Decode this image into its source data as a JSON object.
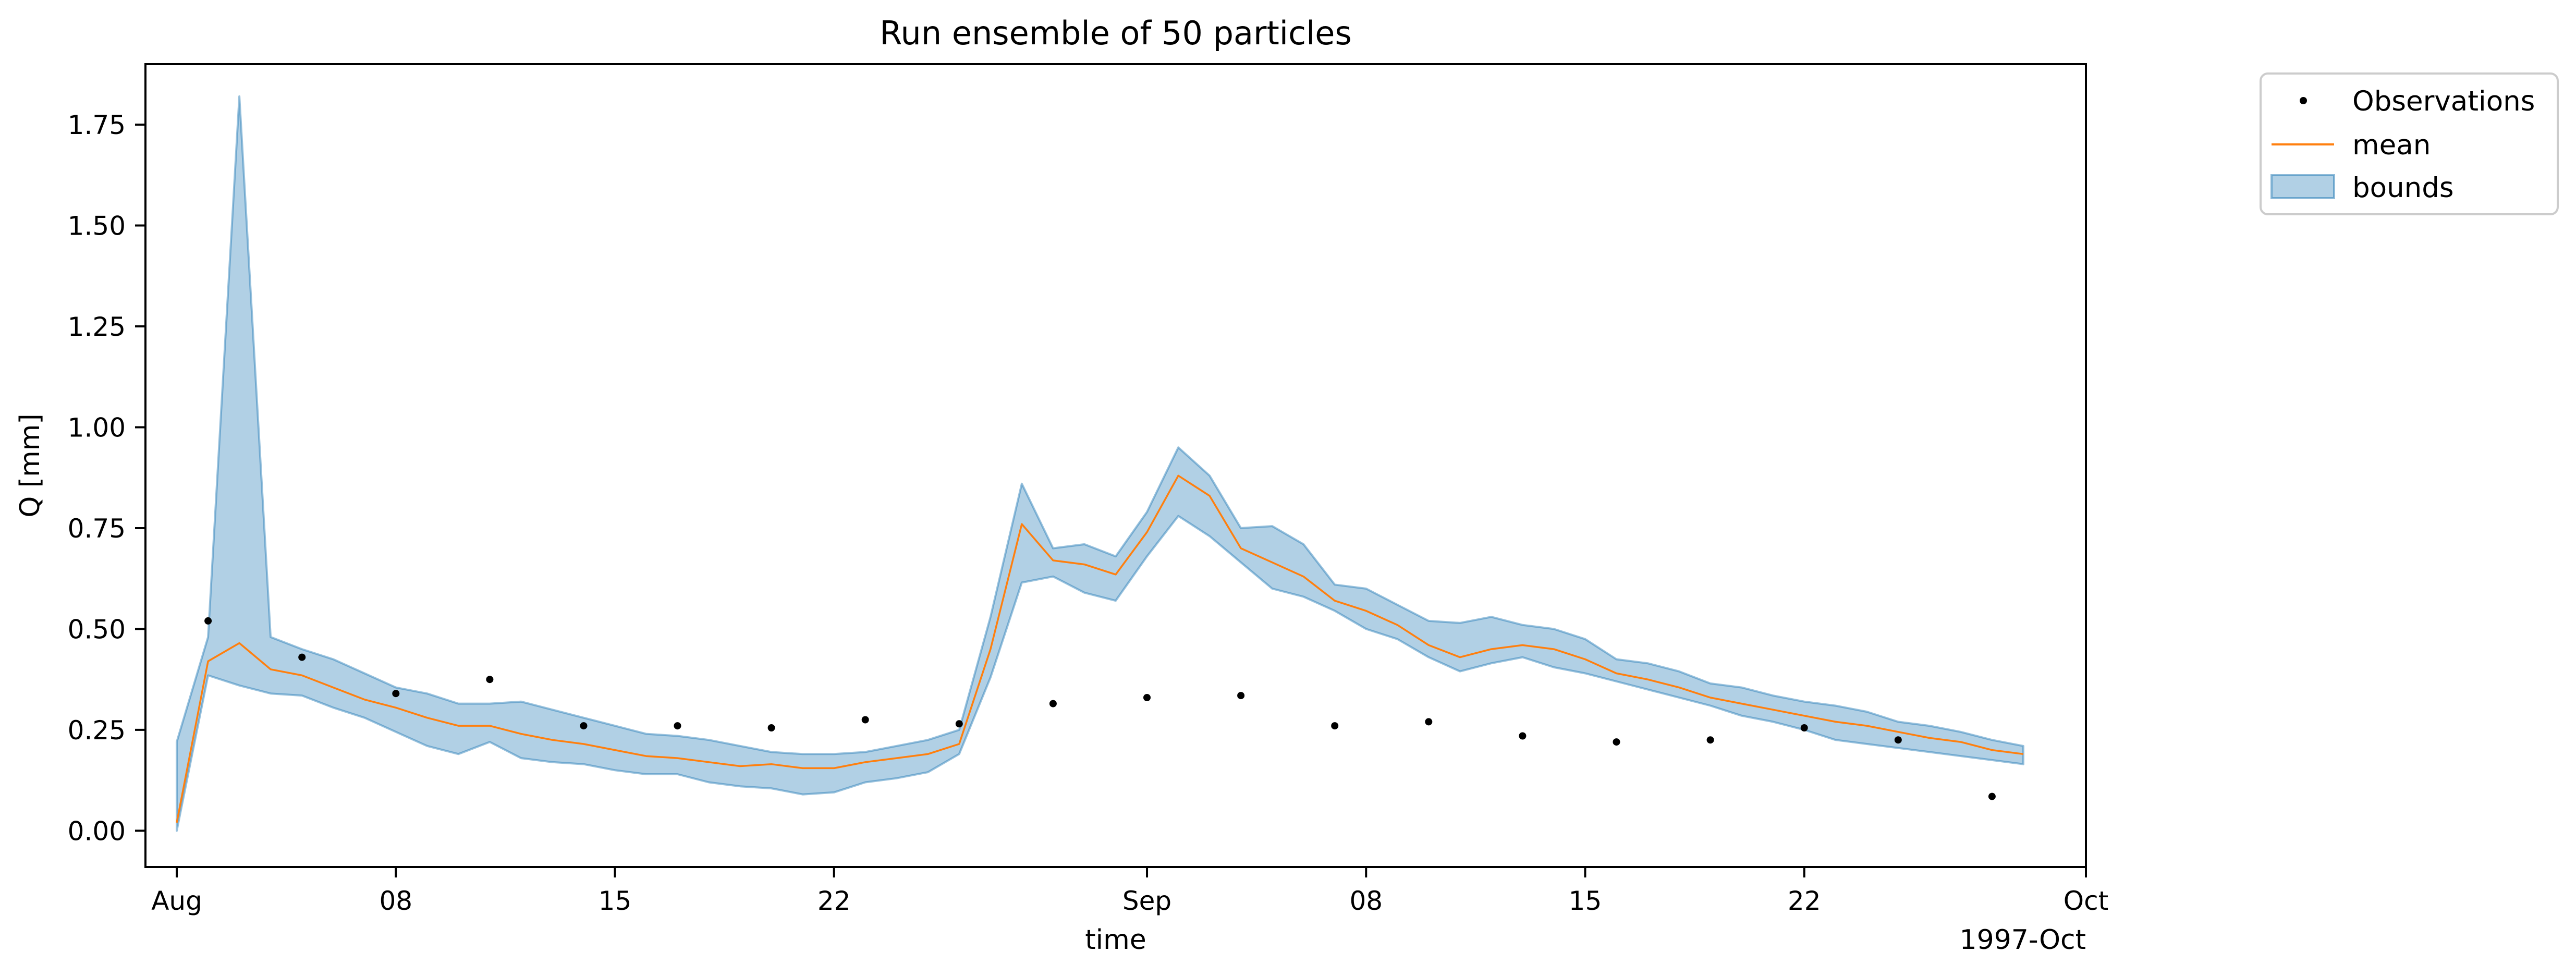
{
  "chart_data": {
    "type": "line",
    "title": "Run ensemble of 50 particles",
    "xlabel": "time",
    "ylabel": "Q [mm]",
    "x_offset_label": "1997-Oct",
    "xlim": [
      "1997-07-31",
      "1997-10-01"
    ],
    "ylim": [
      -0.09,
      1.9
    ],
    "xticks": [
      {
        "date": "1997-08-01",
        "label": "Aug"
      },
      {
        "date": "1997-08-08",
        "label": "08"
      },
      {
        "date": "1997-08-15",
        "label": "15"
      },
      {
        "date": "1997-08-22",
        "label": "22"
      },
      {
        "date": "1997-09-01",
        "label": "Sep"
      },
      {
        "date": "1997-09-08",
        "label": "08"
      },
      {
        "date": "1997-09-15",
        "label": "15"
      },
      {
        "date": "1997-09-22",
        "label": "22"
      },
      {
        "date": "1997-10-01",
        "label": "Oct"
      }
    ],
    "yticks": [
      {
        "value": 0.0,
        "label": "0.00"
      },
      {
        "value": 0.25,
        "label": "0.25"
      },
      {
        "value": 0.5,
        "label": "0.50"
      },
      {
        "value": 0.75,
        "label": "0.75"
      },
      {
        "value": 1.0,
        "label": "1.00"
      },
      {
        "value": 1.25,
        "label": "1.25"
      },
      {
        "value": 1.5,
        "label": "1.50"
      },
      {
        "value": 1.75,
        "label": "1.75"
      }
    ],
    "grid": false,
    "legend_position": "outside top-right",
    "colors": {
      "observations": "#000000",
      "mean": "#ff7f0e",
      "bounds_fill": "#1f77b4",
      "bounds_fill_opacity": 0.35
    },
    "series": [
      {
        "name": "Observations",
        "kind": "markers",
        "x": [
          "1997-08-02",
          "1997-08-05",
          "1997-08-08",
          "1997-08-11",
          "1997-08-14",
          "1997-08-17",
          "1997-08-20",
          "1997-08-23",
          "1997-08-26",
          "1997-08-29",
          "1997-09-01",
          "1997-09-04",
          "1997-09-07",
          "1997-09-10",
          "1997-09-13",
          "1997-09-16",
          "1997-09-19",
          "1997-09-22",
          "1997-09-25",
          "1997-09-28"
        ],
        "y": [
          0.52,
          0.43,
          0.34,
          0.375,
          0.26,
          0.26,
          0.255,
          0.275,
          0.265,
          0.315,
          0.33,
          0.335,
          0.26,
          0.27,
          0.235,
          0.22,
          0.225,
          0.255,
          0.225,
          0.085
        ]
      },
      {
        "name": "mean",
        "kind": "line",
        "x": [
          "1997-08-01",
          "1997-08-02",
          "1997-08-03",
          "1997-08-04",
          "1997-08-05",
          "1997-08-06",
          "1997-08-07",
          "1997-08-08",
          "1997-08-09",
          "1997-08-10",
          "1997-08-11",
          "1997-08-12",
          "1997-08-13",
          "1997-08-14",
          "1997-08-15",
          "1997-08-16",
          "1997-08-17",
          "1997-08-18",
          "1997-08-19",
          "1997-08-20",
          "1997-08-21",
          "1997-08-22",
          "1997-08-23",
          "1997-08-24",
          "1997-08-25",
          "1997-08-26",
          "1997-08-27",
          "1997-08-28",
          "1997-08-29",
          "1997-08-30",
          "1997-08-31",
          "1997-09-01",
          "1997-09-02",
          "1997-09-03",
          "1997-09-04",
          "1997-09-05",
          "1997-09-06",
          "1997-09-07",
          "1997-09-08",
          "1997-09-09",
          "1997-09-10",
          "1997-09-11",
          "1997-09-12",
          "1997-09-13",
          "1997-09-14",
          "1997-09-15",
          "1997-09-16",
          "1997-09-17",
          "1997-09-18",
          "1997-09-19",
          "1997-09-20",
          "1997-09-21",
          "1997-09-22",
          "1997-09-23",
          "1997-09-24",
          "1997-09-25",
          "1997-09-26",
          "1997-09-27",
          "1997-09-28",
          "1997-09-29"
        ],
        "y": [
          0.02,
          0.42,
          0.465,
          0.4,
          0.385,
          0.355,
          0.325,
          0.305,
          0.28,
          0.26,
          0.26,
          0.24,
          0.225,
          0.215,
          0.2,
          0.185,
          0.18,
          0.17,
          0.16,
          0.165,
          0.155,
          0.155,
          0.17,
          0.18,
          0.19,
          0.215,
          0.45,
          0.76,
          0.67,
          0.66,
          0.635,
          0.74,
          0.88,
          0.83,
          0.7,
          0.665,
          0.63,
          0.57,
          0.545,
          0.51,
          0.46,
          0.43,
          0.45,
          0.46,
          0.45,
          0.425,
          0.39,
          0.375,
          0.355,
          0.33,
          0.315,
          0.3,
          0.285,
          0.27,
          0.26,
          0.245,
          0.23,
          0.22,
          0.2,
          0.19
        ]
      },
      {
        "name": "bounds",
        "kind": "band",
        "x": [
          "1997-08-01",
          "1997-08-02",
          "1997-08-03",
          "1997-08-04",
          "1997-08-05",
          "1997-08-06",
          "1997-08-07",
          "1997-08-08",
          "1997-08-09",
          "1997-08-10",
          "1997-08-11",
          "1997-08-12",
          "1997-08-13",
          "1997-08-14",
          "1997-08-15",
          "1997-08-16",
          "1997-08-17",
          "1997-08-18",
          "1997-08-19",
          "1997-08-20",
          "1997-08-21",
          "1997-08-22",
          "1997-08-23",
          "1997-08-24",
          "1997-08-25",
          "1997-08-26",
          "1997-08-27",
          "1997-08-28",
          "1997-08-29",
          "1997-08-30",
          "1997-08-31",
          "1997-09-01",
          "1997-09-02",
          "1997-09-03",
          "1997-09-04",
          "1997-09-05",
          "1997-09-06",
          "1997-09-07",
          "1997-09-08",
          "1997-09-09",
          "1997-09-10",
          "1997-09-11",
          "1997-09-12",
          "1997-09-13",
          "1997-09-14",
          "1997-09-15",
          "1997-09-16",
          "1997-09-17",
          "1997-09-18",
          "1997-09-19",
          "1997-09-20",
          "1997-09-21",
          "1997-09-22",
          "1997-09-23",
          "1997-09-24",
          "1997-09-25",
          "1997-09-26",
          "1997-09-27",
          "1997-09-28",
          "1997-09-29"
        ],
        "lower": [
          0.0,
          0.385,
          0.36,
          0.34,
          0.335,
          0.305,
          0.28,
          0.245,
          0.21,
          0.19,
          0.22,
          0.18,
          0.17,
          0.165,
          0.15,
          0.14,
          0.14,
          0.12,
          0.11,
          0.105,
          0.09,
          0.095,
          0.12,
          0.13,
          0.145,
          0.19,
          0.38,
          0.615,
          0.63,
          0.59,
          0.57,
          0.68,
          0.78,
          0.73,
          0.665,
          0.6,
          0.58,
          0.545,
          0.5,
          0.475,
          0.43,
          0.395,
          0.415,
          0.43,
          0.405,
          0.39,
          0.37,
          0.35,
          0.33,
          0.31,
          0.285,
          0.27,
          0.25,
          0.225,
          0.215,
          0.205,
          0.195,
          0.185,
          0.175,
          0.165
        ],
        "upper": [
          0.22,
          0.48,
          1.82,
          0.48,
          0.45,
          0.425,
          0.39,
          0.355,
          0.34,
          0.315,
          0.315,
          0.32,
          0.3,
          0.28,
          0.26,
          0.24,
          0.235,
          0.225,
          0.21,
          0.195,
          0.19,
          0.19,
          0.195,
          0.21,
          0.225,
          0.25,
          0.53,
          0.86,
          0.7,
          0.71,
          0.68,
          0.79,
          0.95,
          0.88,
          0.75,
          0.755,
          0.71,
          0.61,
          0.6,
          0.56,
          0.52,
          0.515,
          0.53,
          0.51,
          0.5,
          0.475,
          0.425,
          0.415,
          0.395,
          0.365,
          0.355,
          0.335,
          0.32,
          0.31,
          0.295,
          0.27,
          0.26,
          0.245,
          0.225,
          0.21
        ]
      }
    ]
  }
}
